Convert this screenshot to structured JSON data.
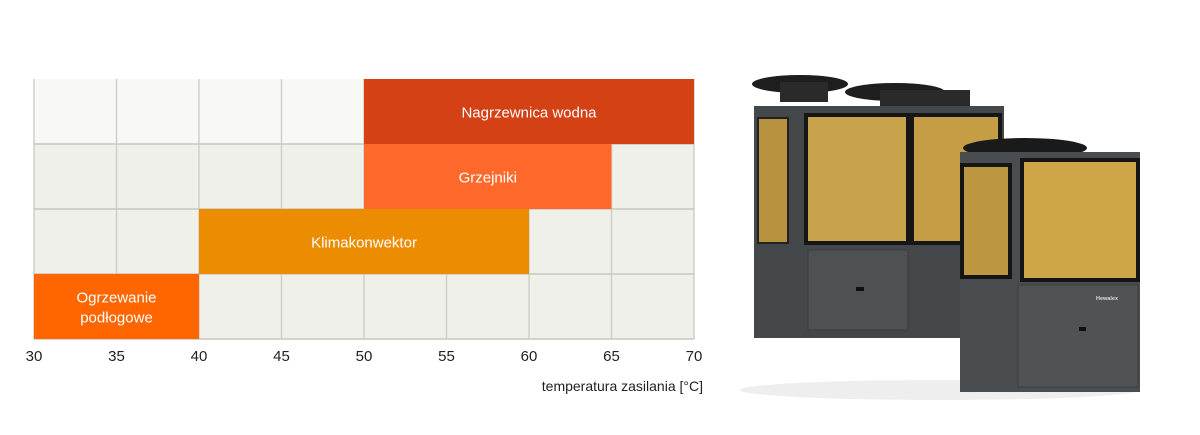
{
  "chart_data": {
    "type": "range-bar",
    "xlabel": "temperatura zasilania [°C]",
    "xlim": [
      30,
      70
    ],
    "xticks": [
      30,
      35,
      40,
      45,
      50,
      55,
      60,
      65,
      70
    ],
    "grid": true,
    "series": [
      {
        "name": "Nagrzewnica wodna",
        "label_lines": [
          "Nagrzewnica wodna"
        ],
        "start": 50,
        "end": 70,
        "color": "#d44115"
      },
      {
        "name": "Grzejniki",
        "label_lines": [
          "Grzejniki"
        ],
        "start": 50,
        "end": 65,
        "color": "#ff6a2c"
      },
      {
        "name": "Klimakonwektor",
        "label_lines": [
          "Klimakonwektor"
        ],
        "start": 40,
        "end": 60,
        "color": "#ec8c00"
      },
      {
        "name": "Ogrzewanie podłogowe",
        "label_lines": [
          "Ogrzewanie",
          "podłogowe"
        ],
        "start": 30,
        "end": 40,
        "color": "#ff6600"
      }
    ]
  },
  "product": {
    "brand_logo": "Hewalex"
  }
}
